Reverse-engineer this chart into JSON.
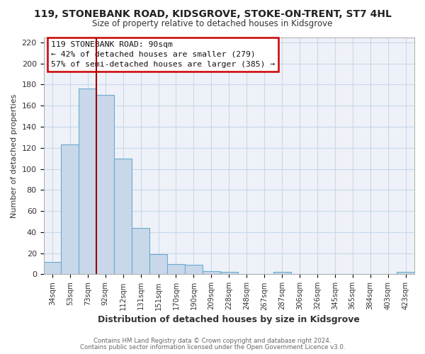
{
  "title": "119, STONEBANK ROAD, KIDSGROVE, STOKE-ON-TRENT, ST7 4HL",
  "subtitle": "Size of property relative to detached houses in Kidsgrove",
  "xlabel": "Distribution of detached houses by size in Kidsgrove",
  "ylabel": "Number of detached properties",
  "bar_labels": [
    "34sqm",
    "53sqm",
    "73sqm",
    "92sqm",
    "112sqm",
    "131sqm",
    "151sqm",
    "170sqm",
    "190sqm",
    "209sqm",
    "228sqm",
    "248sqm",
    "267sqm",
    "287sqm",
    "306sqm",
    "326sqm",
    "345sqm",
    "365sqm",
    "384sqm",
    "403sqm",
    "423sqm"
  ],
  "bar_values": [
    12,
    123,
    176,
    170,
    110,
    44,
    19,
    10,
    9,
    3,
    2,
    0,
    0,
    2,
    0,
    0,
    0,
    0,
    0,
    0,
    2
  ],
  "bar_color": "#c8d8ea",
  "bar_edgecolor": "#6baad0",
  "ylim": [
    0,
    225
  ],
  "yticks": [
    0,
    20,
    40,
    60,
    80,
    100,
    120,
    140,
    160,
    180,
    200,
    220
  ],
  "vline_color": "#9b0000",
  "annotation_title": "119 STONEBANK ROAD: 90sqm",
  "annotation_line1": "← 42% of detached houses are smaller (279)",
  "annotation_line2": "57% of semi-detached houses are larger (385) →",
  "footer1": "Contains HM Land Registry data © Crown copyright and database right 2024.",
  "footer2": "Contains public sector information licensed under the Open Government Licence v3.0.",
  "grid_color": "#c8d8ea",
  "background_color": "#ffffff",
  "axes_bg_color": "#eef2f8"
}
